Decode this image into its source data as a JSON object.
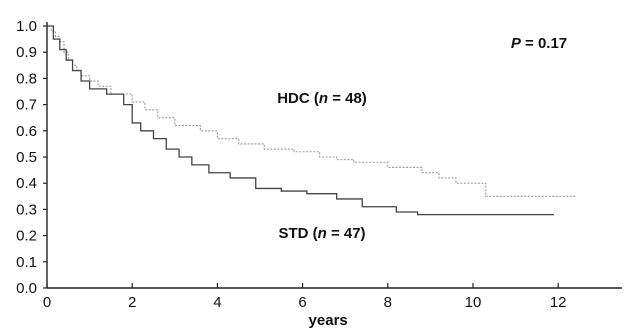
{
  "chart_data": {
    "type": "line",
    "title": "",
    "xlabel": "years",
    "ylabel": "",
    "xlim": [
      0,
      13
    ],
    "ylim": [
      0,
      1.0
    ],
    "x_ticks": [
      0,
      2,
      4,
      6,
      8,
      10,
      12
    ],
    "x_tick_labels": [
      "0",
      "2",
      "4",
      "6",
      "8",
      "10",
      "12"
    ],
    "y_ticks": [
      0,
      0.1,
      0.2,
      0.3,
      0.4,
      0.5,
      0.6,
      0.7,
      0.8,
      0.9,
      1.0
    ],
    "y_tick_labels": [
      "0.0",
      "0.1",
      "0.2",
      "0.3",
      "0.4",
      "0.5",
      "0.6",
      "0.7",
      "0.8",
      "0.9",
      "1.0"
    ],
    "grid": false,
    "legend": "none",
    "step": true,
    "series": [
      {
        "label_prefix": "HDC (",
        "label_var": "n",
        "label_suffix": " = 48)",
        "color": "#9a9a9a",
        "dash": "2,1.5",
        "x": [
          0,
          0.1,
          0.2,
          0.3,
          0.4,
          0.5,
          0.6,
          0.7,
          0.8,
          1.0,
          1.2,
          1.5,
          2.0,
          2.3,
          2.6,
          3.0,
          3.6,
          4.0,
          4.5,
          5.1,
          5.8,
          6.4,
          6.8,
          7.2,
          8.0,
          8.8,
          9.2,
          9.6,
          10.3,
          12.4
        ],
        "y": [
          1.0,
          0.98,
          0.96,
          0.94,
          0.9,
          0.87,
          0.85,
          0.83,
          0.81,
          0.79,
          0.77,
          0.74,
          0.71,
          0.68,
          0.65,
          0.62,
          0.6,
          0.57,
          0.55,
          0.53,
          0.52,
          0.5,
          0.49,
          0.48,
          0.46,
          0.44,
          0.42,
          0.4,
          0.35,
          0.35
        ]
      },
      {
        "label_prefix": "STD (",
        "label_var": "n",
        "label_suffix": " = 47)",
        "color": "#444444",
        "dash": "",
        "x": [
          0,
          0.15,
          0.3,
          0.45,
          0.6,
          0.8,
          1.0,
          1.4,
          1.8,
          2.0,
          2.2,
          2.5,
          2.8,
          3.1,
          3.4,
          3.8,
          4.3,
          4.9,
          5.5,
          6.1,
          6.8,
          7.4,
          8.2,
          8.7,
          9.3,
          11.9
        ],
        "y": [
          1.0,
          0.95,
          0.91,
          0.87,
          0.83,
          0.79,
          0.76,
          0.74,
          0.7,
          0.63,
          0.6,
          0.57,
          0.53,
          0.5,
          0.47,
          0.44,
          0.42,
          0.38,
          0.37,
          0.36,
          0.34,
          0.31,
          0.29,
          0.28,
          0.28,
          0.28
        ]
      }
    ],
    "annotations": [
      {
        "id": "p-value",
        "italic": "P",
        "rest": " = 0.17"
      }
    ]
  }
}
